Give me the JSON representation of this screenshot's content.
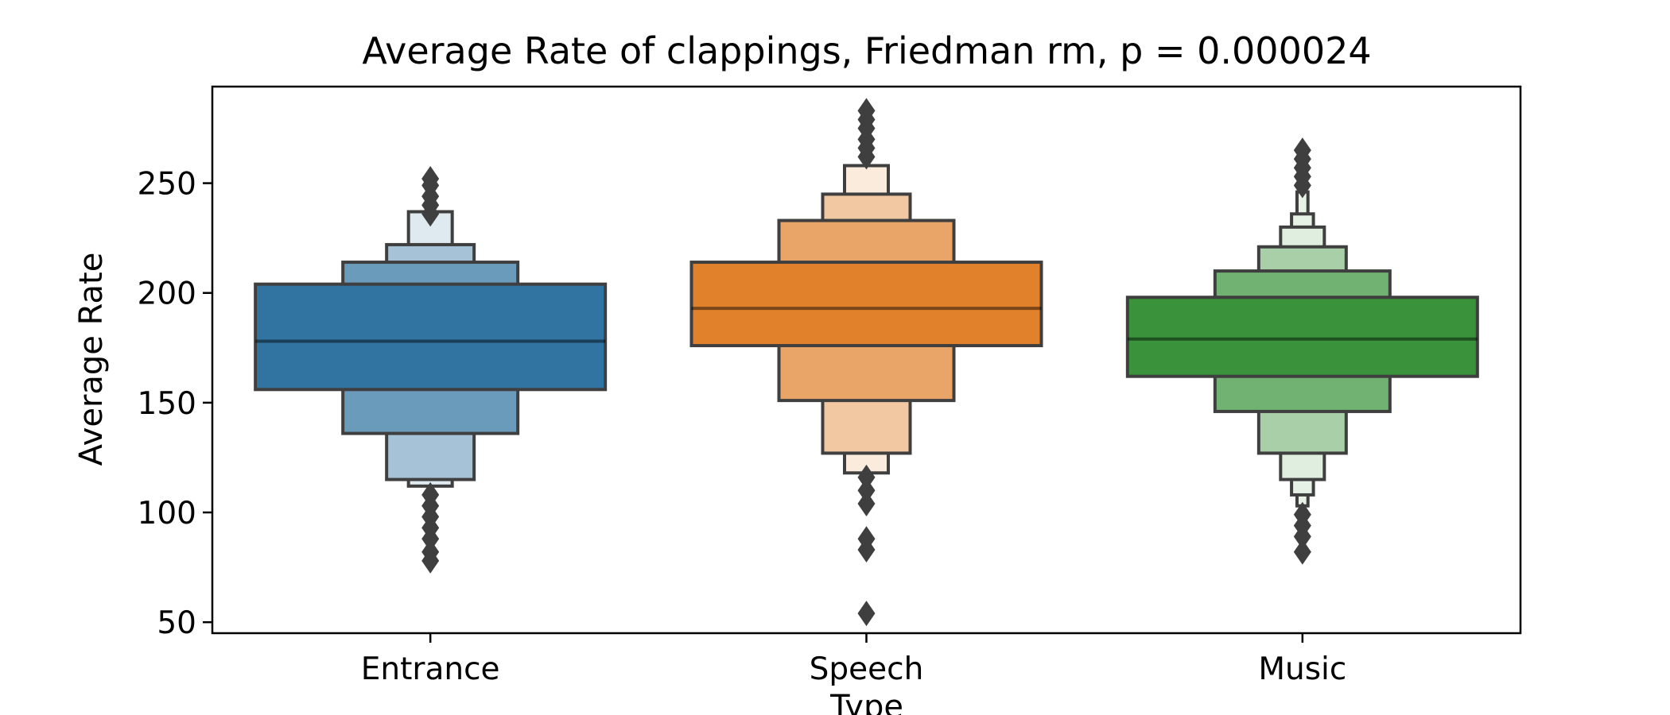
{
  "chart_data": {
    "type": "boxen",
    "title": "Average Rate of clappings, Friedman rm, p = 0.000024",
    "xlabel": "Type",
    "ylabel": "Average Rate",
    "categories": [
      "Entrance",
      "Speech",
      "Music"
    ],
    "ylim": [
      45,
      294
    ],
    "yticks": [
      50,
      100,
      150,
      200,
      250
    ],
    "grid": false,
    "series": [
      {
        "category": "Entrance",
        "color": "#3274a1",
        "median": 178,
        "letter_values": [
          [
            156,
            204
          ],
          [
            136,
            214
          ],
          [
            115,
            222
          ],
          [
            112,
            237
          ]
        ],
        "outliers": [
          78,
          82,
          88,
          93,
          98,
          103,
          108,
          236,
          240,
          244,
          249,
          252
        ]
      },
      {
        "category": "Speech",
        "color": "#e1812c",
        "median": 193,
        "letter_values": [
          [
            176,
            214
          ],
          [
            151,
            233
          ],
          [
            127,
            245
          ],
          [
            118,
            258
          ]
        ],
        "outliers": [
          54,
          83,
          88,
          104,
          110,
          116,
          262,
          266,
          270,
          275,
          279,
          283
        ]
      },
      {
        "category": "Music",
        "color": "#3a923a",
        "median": 179,
        "letter_values": [
          [
            162,
            198
          ],
          [
            146,
            210
          ],
          [
            127,
            221
          ],
          [
            115,
            230
          ],
          [
            108,
            236
          ],
          [
            103,
            246
          ]
        ],
        "outliers": [
          82,
          89,
          94,
          99,
          249,
          253,
          257,
          261,
          265
        ]
      }
    ]
  }
}
